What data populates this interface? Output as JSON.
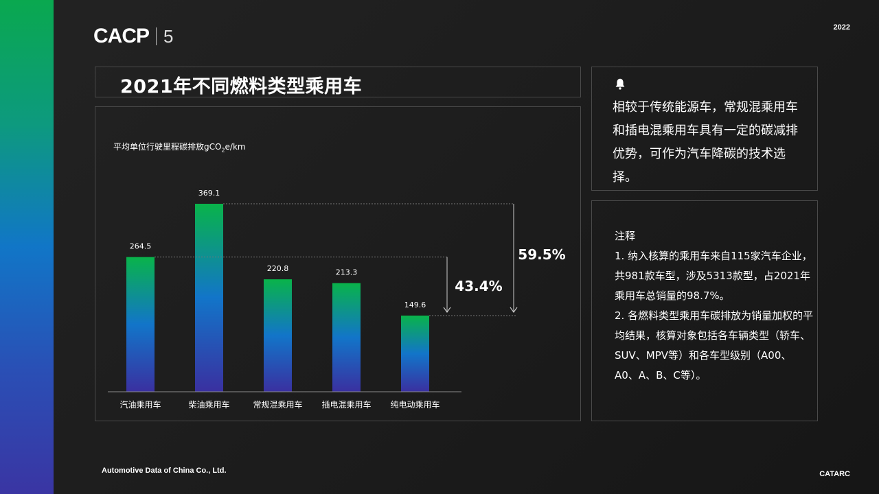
{
  "header": {
    "logo_text": "CACP",
    "logo_number": "5",
    "year": "2022"
  },
  "title": "2021年不同燃料类型乘用车",
  "chart_data": {
    "type": "bar",
    "ylabel_prefix": "平均单位行驶里程碳排放gCO",
    "ylabel_sub": "2",
    "ylabel_suffix": "e/km",
    "categories": [
      "汽油乘用车",
      "柴油乘用车",
      "常规混乘用车",
      "插电混乘用车",
      "纯电动乘用车"
    ],
    "values": [
      264.5,
      369.1,
      220.8,
      213.3,
      149.6
    ],
    "value_labels": [
      "264.5",
      "369.1",
      "220.8",
      "213.3",
      "149.6"
    ],
    "ylim": [
      0,
      400
    ],
    "bar_gradient": [
      "#09b34a",
      "#1275c9",
      "#3a30a0"
    ],
    "annotations": [
      {
        "label": "43.4%",
        "from_category": "汽油乘用车",
        "to_category": "纯电动乘用车"
      },
      {
        "label": "59.5%",
        "from_category": "柴油乘用车",
        "to_category": "纯电动乘用车"
      }
    ]
  },
  "note1": {
    "icon": "bell-icon",
    "text": "相较于传统能源车，常规混乘用车和插电混乘用车具有一定的碳减排优势，可作为汽车降碳的技术选择。"
  },
  "note2": {
    "title": "注释",
    "items": [
      "1. 纳入核算的乘用车来自115家汽车企业，共981款车型，涉及5313款型，占2021年乘用车总销量的98.7%。",
      "2. 各燃料类型乘用车碳排放为销量加权的平均结果，核算对象包括各车辆类型（轿车、SUV、MPV等）和各车型级别（A00、A0、A、B、C等）。"
    ]
  },
  "footer": {
    "left": "Automotive Data of China Co., Ltd.",
    "right": "CATARC"
  }
}
